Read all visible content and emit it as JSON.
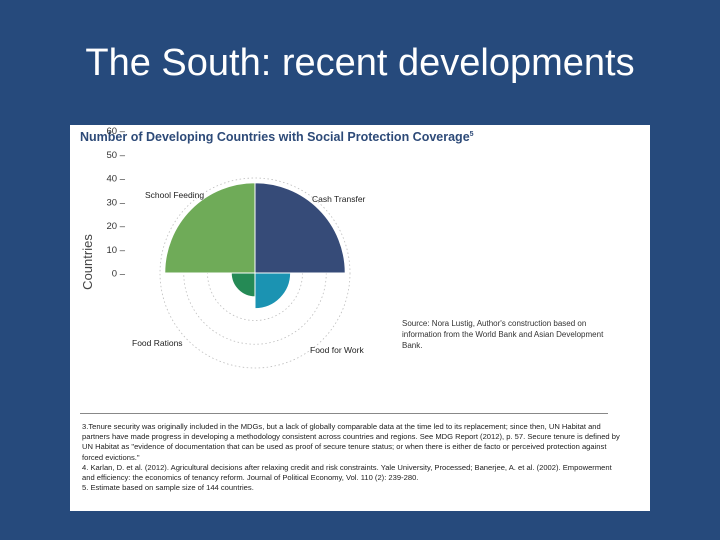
{
  "slide": {
    "title": "The South: recent developments"
  },
  "chart_data": {
    "type": "polar-area",
    "title": "Number of Developing Countries with Social Protection Coverage",
    "title_note": "5",
    "ylabel": "Countries",
    "yticks": [
      "60 –",
      "50 –",
      "40 –",
      "30 –",
      "20 –",
      "10 –",
      "0 –"
    ],
    "ylim": [
      0,
      60
    ],
    "categories": [
      "School Feeding",
      "Cash Transfer",
      "Food for Work",
      "Food Rations"
    ],
    "values": [
      38,
      38,
      15,
      10
    ],
    "colors": [
      "#6fab58",
      "#364b78",
      "#1b93b2",
      "#258a55"
    ],
    "grid": true,
    "source": "Source: Nora Lustig, Author's construction based on information from the World Bank and Asian Development Bank."
  },
  "footnotes": [
    "3.Tenure security was originally included in the MDGs, but a lack of globally comparable data at the time led to its replacement; since then, UN Habitat and partners have made progress in developing a methodology consistent across countries and regions. See MDG Report (2012), p. 57. Secure tenure is defined by UN Habitat as \"evidence of documentation that can be used as proof of secure tenure status; or when there is either de facto or perceived protection against forced evictions.\"",
    "4. Karlan, D. et al. (2012). Agricultural decisions after relaxing credit and risk constraints. Yale University, Processed; Banerjee, A. et al. (2002). Empowerment and efficiency: the economics of tenancy reform. Journal of Political Economy, Vol. 110 (2): 239-280.",
    "5. Estimate based on sample size of 144 countries."
  ]
}
